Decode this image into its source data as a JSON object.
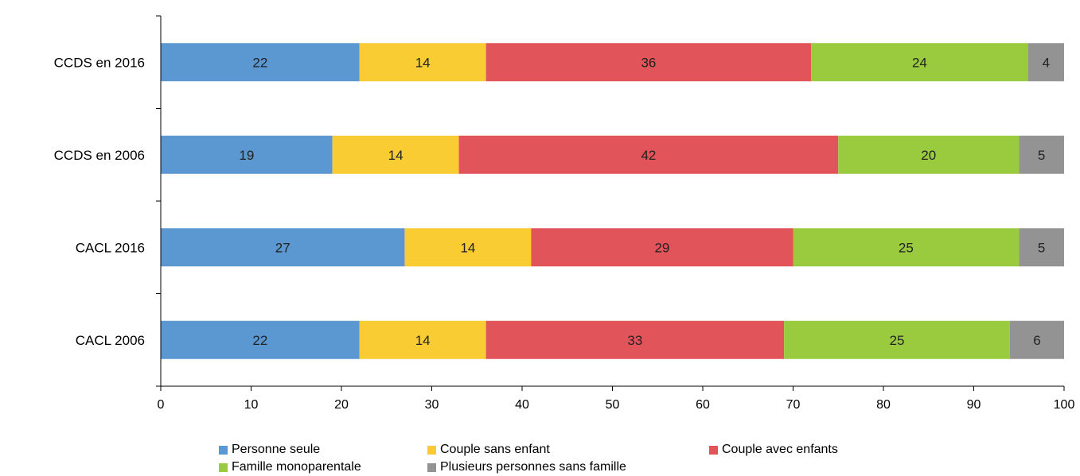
{
  "chart_data": {
    "type": "bar",
    "orientation": "horizontal",
    "stacked": true,
    "categories": [
      "CCDS en 2016",
      "CCDS en 2006",
      "CACL 2016",
      "CACL 2006"
    ],
    "series": [
      {
        "name": "Personne seule",
        "color": "#5b97d1",
        "values": [
          22,
          19,
          27,
          22
        ]
      },
      {
        "name": "Couple sans enfant",
        "color": "#f9cc33",
        "values": [
          14,
          14,
          14,
          14
        ]
      },
      {
        "name": "Couple avec enfants",
        "color": "#e1545a",
        "values": [
          36,
          42,
          29,
          33
        ]
      },
      {
        "name": "Famille monoparentale",
        "color": "#9acb3e",
        "values": [
          24,
          20,
          25,
          25
        ]
      },
      {
        "name": "Plusieurs personnes sans famille",
        "color": "#939393",
        "values": [
          4,
          5,
          5,
          6
        ]
      }
    ],
    "xlim": [
      0,
      100
    ],
    "xticks": [
      "0",
      "10",
      "20",
      "30",
      "40",
      "50",
      "60",
      "70",
      "80",
      "90",
      "100"
    ],
    "grid": false,
    "legend_position": "bottom"
  }
}
